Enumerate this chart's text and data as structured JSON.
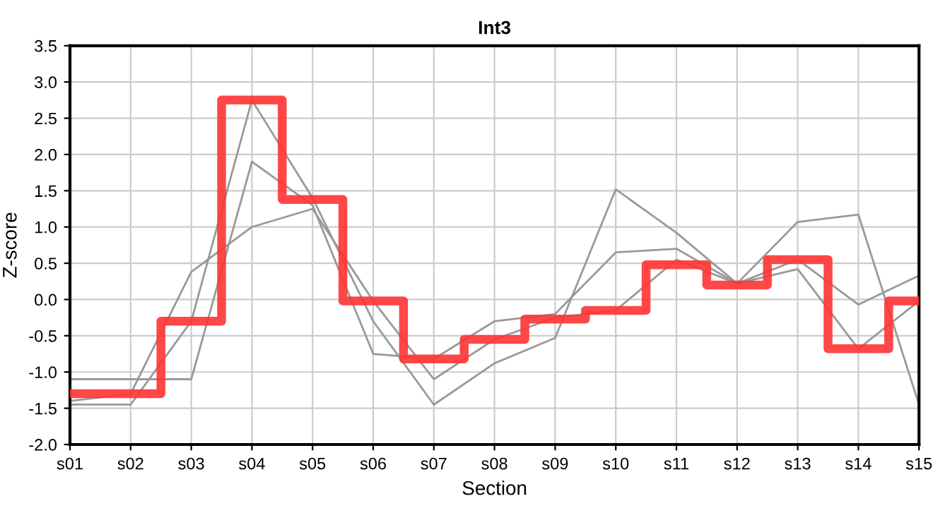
{
  "chart_data": {
    "type": "line",
    "title": "Int3",
    "xlabel": "Section",
    "ylabel": "Z-score",
    "categories": [
      "s01",
      "s02",
      "s03",
      "s04",
      "s05",
      "s06",
      "s07",
      "s08",
      "s09",
      "s10",
      "s11",
      "s12",
      "s13",
      "s14",
      "s15"
    ],
    "series": [
      {
        "color": "#999999",
        "values": [
          -1.45,
          -1.45,
          -0.3,
          2.75,
          1.4,
          -0.3,
          -1.45,
          -0.88,
          -0.53,
          1.52,
          0.92,
          0.22,
          0.42,
          -0.68,
          -0.02
        ]
      },
      {
        "color": "#999999",
        "values": [
          -1.1,
          -1.1,
          -1.1,
          1.9,
          1.3,
          -0.75,
          -0.82,
          -0.3,
          -0.2,
          0.65,
          0.7,
          0.22,
          1.07,
          1.17,
          -1.45
        ]
      },
      {
        "color": "#999999",
        "values": [
          -1.4,
          -1.3,
          0.38,
          1.0,
          1.25,
          -0.02,
          -1.1,
          -0.55,
          -0.25,
          -0.15,
          0.55,
          0.22,
          0.55,
          -0.07,
          0.33
        ]
      },
      {
        "type": "step",
        "color": "#ff3333",
        "values": [
          -1.3,
          -1.3,
          -0.3,
          2.75,
          1.38,
          -0.02,
          -0.82,
          -0.55,
          -0.27,
          -0.15,
          0.48,
          0.2,
          0.55,
          -0.68,
          -0.02
        ]
      }
    ],
    "ylim": [
      -2.0,
      3.5
    ],
    "yticks": [
      {
        "value": -2.0,
        "label": "-2.0"
      },
      {
        "value": -1.5,
        "label": "-1.5"
      },
      {
        "value": -1.0,
        "label": "-1.0"
      },
      {
        "value": -0.5,
        "label": "-0.5"
      },
      {
        "value": 0.0,
        "label": "0.0"
      },
      {
        "value": 0.5,
        "label": "0.5"
      },
      {
        "value": 1.0,
        "label": "1.0"
      },
      {
        "value": 1.5,
        "label": "1.5"
      },
      {
        "value": 2.0,
        "label": "2.0"
      },
      {
        "value": 2.5,
        "label": "2.5"
      },
      {
        "value": 3.0,
        "label": "3.0"
      },
      {
        "value": 3.5,
        "label": "3.5"
      }
    ],
    "grid": true,
    "legend": false
  }
}
